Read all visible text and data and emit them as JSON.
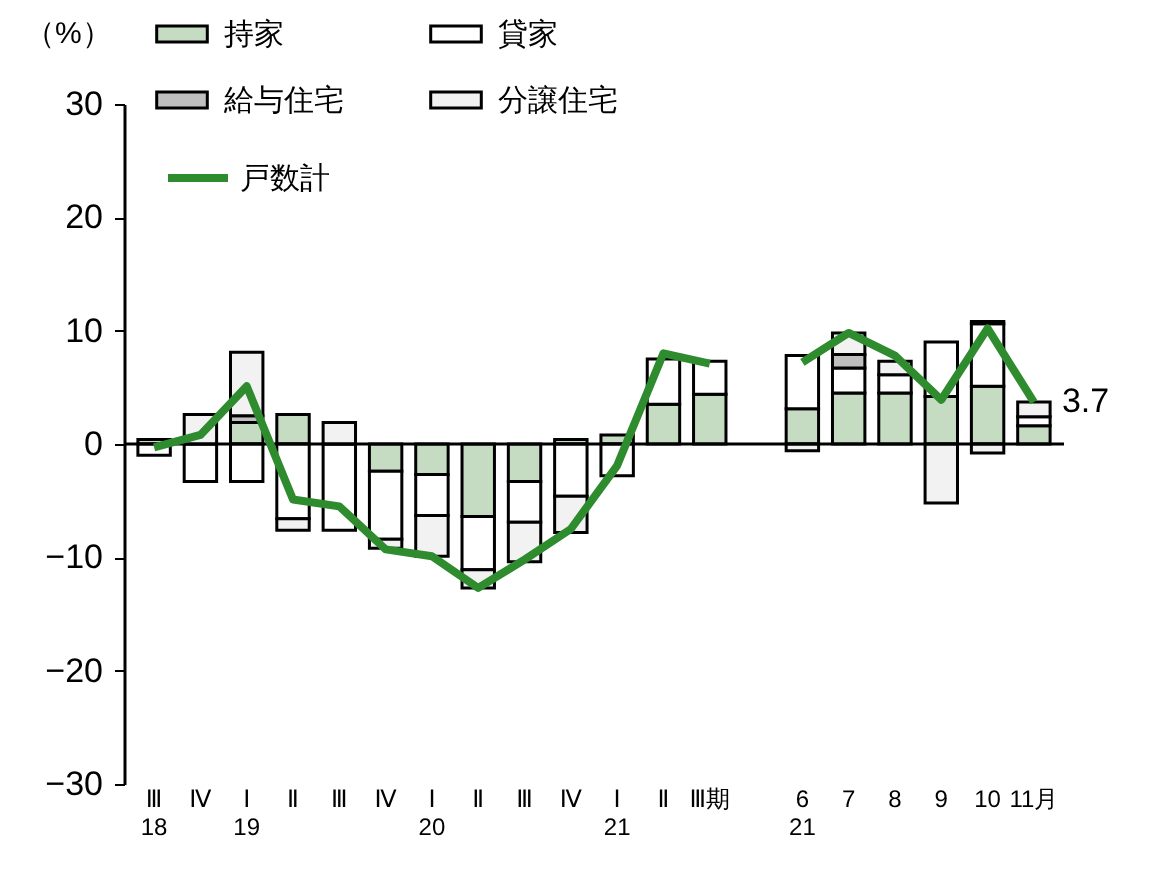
{
  "chart_data": {
    "type": "bar",
    "stacked": true,
    "ylabel": "（%）",
    "categories": [
      "Ⅲ\n18",
      "Ⅳ",
      "Ⅰ\n19",
      "Ⅱ",
      "Ⅲ",
      "Ⅳ",
      "Ⅰ\n20",
      "Ⅱ",
      "Ⅲ",
      "Ⅳ",
      "Ⅰ\n21",
      "Ⅱ",
      "Ⅲ期",
      null,
      "6\n21",
      "7",
      "8",
      "9",
      "10",
      "11月"
    ],
    "series": [
      {
        "name": "持家",
        "color": "#c5dcc2",
        "values": [
          0.4,
          null,
          1.9,
          2.6,
          null,
          -2.4,
          -2.7,
          -6.4,
          -3.3,
          0.4,
          0.8,
          3.5,
          4.4,
          null,
          3.1,
          4.5,
          4.5,
          4.2,
          5.1,
          1.6
        ]
      },
      {
        "name": "貸家",
        "color": "#ffffff",
        "values": [
          -1.0,
          -3.3,
          -3.3,
          -6.6,
          -7.6,
          -6.0,
          -3.6,
          -4.7,
          -3.6,
          -4.6,
          -2.8,
          4.0,
          2.9,
          null,
          4.7,
          2.2,
          1.6,
          4.8,
          5.5,
          0.8
        ]
      },
      {
        "name": "給与住宅",
        "color": "#bfbfbf",
        "values": [
          null,
          null,
          0.6,
          null,
          null,
          null,
          null,
          null,
          null,
          null,
          null,
          null,
          null,
          null,
          null,
          1.2,
          null,
          null,
          0.2,
          null
        ]
      },
      {
        "name": "分譲住宅",
        "color": "#f2f2f2",
        "values": [
          null,
          2.6,
          5.6,
          -1.0,
          1.9,
          -0.8,
          -3.6,
          -1.6,
          -3.5,
          -3.2,
          null,
          null,
          null,
          null,
          -0.6,
          1.9,
          1.2,
          -5.2,
          -0.8,
          1.3
        ]
      },
      {
        "name": "戸数計",
        "type": "line",
        "color": "#2e8b2e",
        "values": [
          -0.3,
          0.8,
          5.1,
          -4.9,
          -5.5,
          -9.3,
          -9.9,
          -12.7,
          -10.2,
          -7.5,
          -1.9,
          8.0,
          7.1,
          null,
          7.2,
          9.8,
          7.8,
          3.9,
          10.2,
          3.7
        ]
      }
    ],
    "ylim": [
      -30,
      30
    ],
    "yticks": [
      -30,
      -20,
      -10,
      0,
      10,
      20,
      30
    ],
    "ref_lines": [
      {
        "axis": "y",
        "value": 0
      }
    ],
    "annotations": [
      {
        "text": "3.7",
        "x": "11月",
        "y": 3.7
      }
    ],
    "legend": "top left"
  }
}
